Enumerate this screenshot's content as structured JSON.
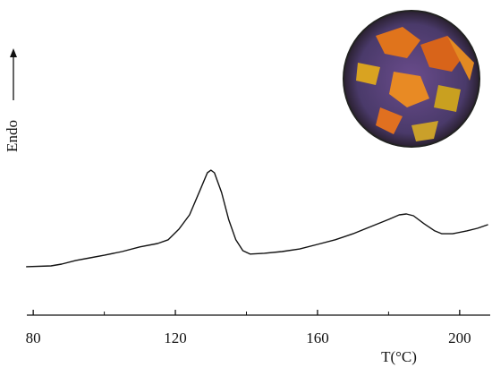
{
  "chart_data": {
    "type": "line",
    "x_label": "T(°C)",
    "y_label": "Endo",
    "x": [
      78,
      85,
      88,
      92,
      96,
      100,
      105,
      110,
      115,
      118,
      121,
      124,
      127,
      129,
      130,
      131,
      133,
      135,
      137,
      139,
      141,
      145,
      150,
      155,
      160,
      165,
      170,
      175,
      180,
      183,
      185,
      187,
      190,
      193,
      195,
      198,
      202,
      205,
      208
    ],
    "series": [
      {
        "color": "#111111",
        "values": [
          16.9,
          17.2,
          17.8,
          19.1,
          20,
          20.9,
          22.2,
          23.8,
          25,
          26.3,
          30,
          35,
          43.8,
          49.7,
          50.6,
          49.7,
          42.8,
          33.4,
          26.3,
          22.5,
          21.3,
          21.6,
          22.2,
          23.1,
          24.7,
          26.3,
          28.4,
          30.9,
          33.4,
          35,
          35.3,
          34.7,
          31.9,
          29.4,
          28.4,
          28.4,
          29.4,
          30.3,
          31.6
        ]
      }
    ],
    "xlim": [
      78.2,
      208.6
    ],
    "ylim": [
      0,
      100
    ],
    "xticks": [
      80,
      120,
      160,
      200
    ],
    "xminorticks": [
      100,
      140,
      180
    ]
  }
}
